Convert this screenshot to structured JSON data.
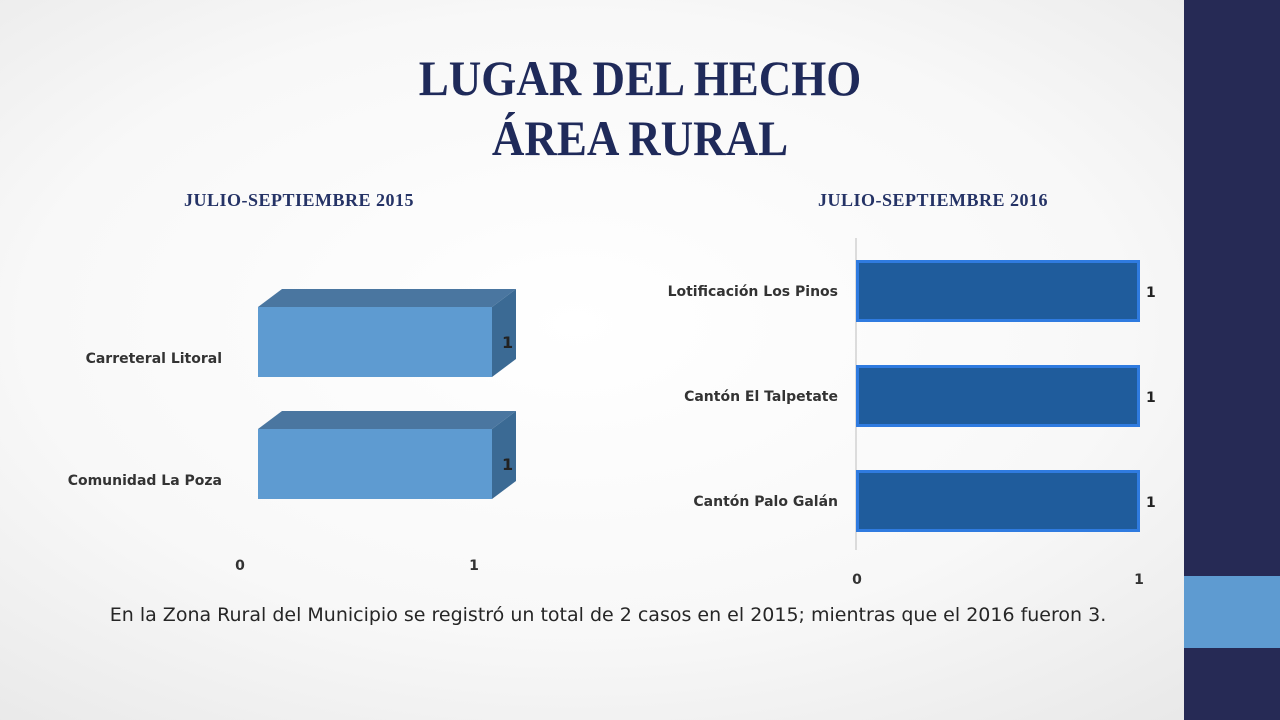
{
  "slide": {
    "title_line1": "LUGAR DEL HECHO",
    "title_line2": "ÁREA RURAL",
    "caption": "En la Zona Rural del Municipio se registró un total de 2 casos en el 2015; mientras que el 2016 fueron 3."
  },
  "colors": {
    "sidebar": "#262a55",
    "sidebar_accent": "#5e9bd1",
    "bar_2015_front": "#5e9bd1",
    "bar_2015_top": "#4a76a0",
    "bar_2015_side": "#3b6a94",
    "bar_2016_fill": "#1f5c9c",
    "bar_2016_border": "#2f7be0"
  },
  "chart_data": [
    {
      "type": "bar",
      "orientation": "horizontal",
      "style": "3d",
      "title": "JULIO-SEPTIEMBRE 2015",
      "categories": [
        "Carreteral Litoral",
        "Comunidad La Poza"
      ],
      "values": [
        1,
        1
      ],
      "x_ticks": [
        "0",
        "1"
      ],
      "xlim": [
        0,
        1
      ],
      "data_labels": [
        "1",
        "1"
      ],
      "grid": false
    },
    {
      "type": "bar",
      "orientation": "horizontal",
      "title": "JULIO-SEPTIEMBRE 2016",
      "categories": [
        "Lotificación Los Pinos",
        "Cantón El Talpetate",
        "Cantón Palo Galán"
      ],
      "values": [
        1,
        1,
        1
      ],
      "x_ticks": [
        "0",
        "1"
      ],
      "xlim": [
        0,
        1
      ],
      "data_labels": [
        "1",
        "1",
        "1"
      ],
      "grid": false
    }
  ]
}
